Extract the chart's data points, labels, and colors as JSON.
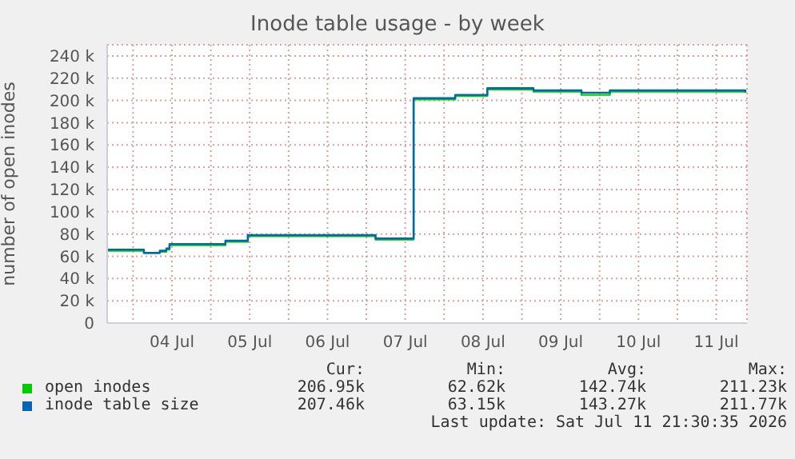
{
  "chart_data": {
    "type": "step",
    "title": "Inode table usage - by week",
    "ylabel": "number of open inodes",
    "xlim": [
      "2026-07-03T16:00",
      "2026-07-11T21:30"
    ],
    "xticks": [
      {
        "value": "2026-07-04T00:00",
        "label": null
      },
      {
        "value": "2026-07-04T12:00",
        "label": "04 Jul"
      },
      {
        "value": "2026-07-05T00:00",
        "label": null
      },
      {
        "value": "2026-07-05T12:00",
        "label": "05 Jul"
      },
      {
        "value": "2026-07-06T00:00",
        "label": null
      },
      {
        "value": "2026-07-06T12:00",
        "label": "06 Jul"
      },
      {
        "value": "2026-07-07T00:00",
        "label": null
      },
      {
        "value": "2026-07-07T12:00",
        "label": "07 Jul"
      },
      {
        "value": "2026-07-08T00:00",
        "label": null
      },
      {
        "value": "2026-07-08T12:00",
        "label": "08 Jul"
      },
      {
        "value": "2026-07-09T00:00",
        "label": null
      },
      {
        "value": "2026-07-09T12:00",
        "label": "09 Jul"
      },
      {
        "value": "2026-07-10T00:00",
        "label": null
      },
      {
        "value": "2026-07-10T12:00",
        "label": "10 Jul"
      },
      {
        "value": "2026-07-11T00:00",
        "label": null
      },
      {
        "value": "2026-07-11T12:00",
        "label": "11 Jul"
      }
    ],
    "ylim": [
      0,
      250000
    ],
    "yticks": [
      0,
      {
        "value": 20000,
        "label": "20 k"
      },
      {
        "value": 40000,
        "label": "40 k"
      },
      {
        "value": 60000,
        "label": "60 k"
      },
      {
        "value": 80000,
        "label": "80 k"
      },
      {
        "value": 100000,
        "label": "100 k"
      },
      {
        "value": 120000,
        "label": "120 k"
      },
      {
        "value": 140000,
        "label": "140 k"
      },
      {
        "value": 160000,
        "label": "160 k"
      },
      {
        "value": 180000,
        "label": "180 k"
      },
      {
        "value": 200000,
        "label": "200 k"
      },
      {
        "value": 220000,
        "label": "220 k"
      },
      {
        "value": 240000,
        "label": "240 k"
      }
    ],
    "grid": true,
    "legend": "bottom",
    "series": [
      {
        "name": "open inodes",
        "color": "#00cc00",
        "x": [
          "2026-07-03T16:00",
          "2026-07-04T03:20",
          "2026-07-04T08:15",
          "2026-07-04T10:15",
          "2026-07-04T11:15",
          "2026-07-05T04:30",
          "2026-07-05T11:25",
          "2026-07-07T02:50",
          "2026-07-07T14:35",
          "2026-07-08T03:25",
          "2026-07-08T13:20",
          "2026-07-09T03:35",
          "2026-07-09T18:25",
          "2026-07-10T03:10",
          "2026-07-11T21:00"
        ],
        "values": [
          65000,
          63000,
          64000,
          66000,
          70000,
          73000,
          78000,
          75000,
          201000,
          204000,
          210000,
          208000,
          205000,
          208000,
          207000
        ]
      },
      {
        "name": "inode table size",
        "color": "#0066b3",
        "x": [
          "2026-07-03T16:00",
          "2026-07-04T03:20",
          "2026-07-04T08:15",
          "2026-07-04T10:15",
          "2026-07-04T11:15",
          "2026-07-05T04:30",
          "2026-07-05T11:25",
          "2026-07-07T02:50",
          "2026-07-07T14:35",
          "2026-07-08T03:25",
          "2026-07-08T13:20",
          "2026-07-09T03:35",
          "2026-07-09T18:25",
          "2026-07-10T03:10",
          "2026-07-11T21:00"
        ],
        "values": [
          66000,
          63000,
          65000,
          67000,
          71000,
          74000,
          79000,
          76000,
          202000,
          205000,
          211000,
          209000,
          207000,
          209000,
          207000
        ]
      }
    ],
    "annotations": [
      "Cur:",
      "Min:",
      "Avg:",
      "Max:",
      "206.95k",
      "62.62k",
      "142.74k",
      "211.23k",
      "207.46k",
      "63.15k",
      "143.27k",
      "211.77k",
      "Last update: Sat Jul 11 21:30:35 2026"
    ]
  }
}
